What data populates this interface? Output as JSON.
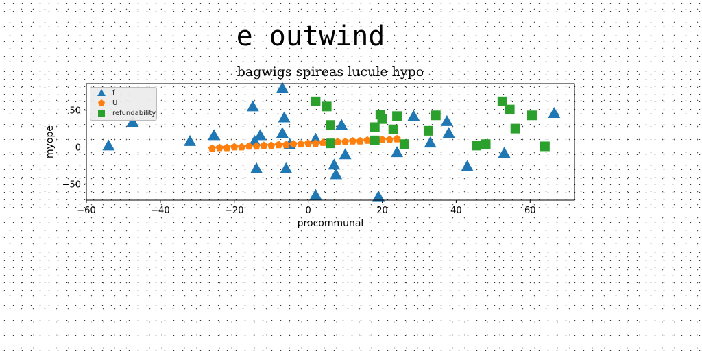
{
  "suptitle": "e outwind",
  "chart_data": {
    "type": "scatter",
    "title": "bagwigs spireas lucule hypo",
    "xlabel": "procommunal",
    "ylabel": "myope",
    "xlim": [
      -60,
      72
    ],
    "ylim": [
      -72,
      86
    ],
    "xticks": [
      -60,
      -40,
      -20,
      0,
      20,
      40,
      60
    ],
    "yticks": [
      -50,
      0,
      50
    ],
    "legend_position": "upper-left",
    "series": [
      {
        "name": "f",
        "marker": "triangle",
        "color": "#1f77b4",
        "points": [
          [
            -54,
            2
          ],
          [
            -47.5,
            34
          ],
          [
            -32,
            8
          ],
          [
            -25.5,
            16
          ],
          [
            -15,
            55
          ],
          [
            -14.5,
            8
          ],
          [
            -14,
            -29
          ],
          [
            -13,
            16
          ],
          [
            -7,
            80
          ],
          [
            -6.5,
            40
          ],
          [
            -7,
            19
          ],
          [
            -6,
            -29
          ],
          [
            -5,
            4
          ],
          [
            2,
            11
          ],
          [
            2,
            -65
          ],
          [
            7,
            -24
          ],
          [
            7.5,
            -37
          ],
          [
            9,
            30
          ],
          [
            10,
            -10
          ],
          [
            19,
            -67
          ],
          [
            24,
            -7
          ],
          [
            28.5,
            42
          ],
          [
            33,
            6
          ],
          [
            37.5,
            35
          ],
          [
            38,
            19
          ],
          [
            43,
            -26
          ],
          [
            53,
            -8
          ],
          [
            66.5,
            46
          ]
        ]
      },
      {
        "name": "U",
        "marker": "pentagon",
        "color": "#ff7f0e",
        "points": [
          [
            -26,
            -2
          ],
          [
            -24,
            -1
          ],
          [
            -22,
            -1
          ],
          [
            -20,
            0
          ],
          [
            -18,
            0
          ],
          [
            -16,
            1
          ],
          [
            -14,
            1
          ],
          [
            -12,
            2
          ],
          [
            -10,
            2
          ],
          [
            -8,
            3
          ],
          [
            -6,
            3
          ],
          [
            -4,
            4
          ],
          [
            -2,
            4
          ],
          [
            0,
            5
          ],
          [
            2,
            5
          ],
          [
            4,
            6
          ],
          [
            6,
            6
          ],
          [
            8,
            7
          ],
          [
            10,
            7
          ],
          [
            12,
            8
          ],
          [
            14,
            8
          ],
          [
            16,
            9
          ],
          [
            18,
            9
          ],
          [
            20,
            10
          ],
          [
            22,
            10
          ],
          [
            24,
            11
          ]
        ]
      },
      {
        "name": "refundability",
        "marker": "square",
        "color": "#2ca02c",
        "points": [
          [
            2,
            62
          ],
          [
            5,
            55
          ],
          [
            6,
            30
          ],
          [
            6,
            5
          ],
          [
            18,
            27
          ],
          [
            18,
            9
          ],
          [
            19.5,
            44
          ],
          [
            20,
            38
          ],
          [
            23,
            24
          ],
          [
            24,
            42
          ],
          [
            26,
            4
          ],
          [
            32.5,
            22
          ],
          [
            34.5,
            43
          ],
          [
            45.5,
            2
          ],
          [
            48,
            4
          ],
          [
            52.5,
            62
          ],
          [
            54.5,
            51
          ],
          [
            56,
            25
          ],
          [
            60.5,
            43
          ],
          [
            64,
            1
          ]
        ]
      }
    ]
  }
}
